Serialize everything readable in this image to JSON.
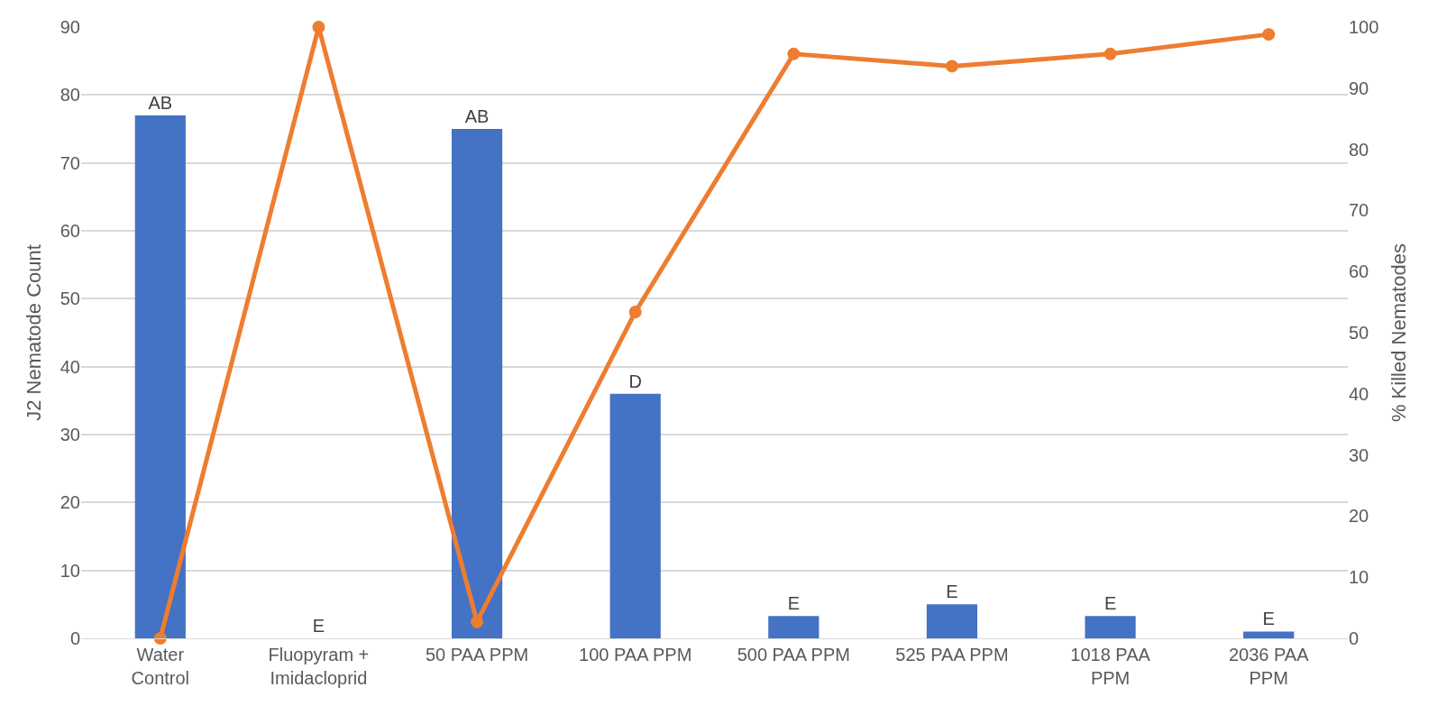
{
  "chart_data": {
    "type": "bar",
    "categories": [
      "Water\nControl",
      "Fluopyram +\nImidacloprid",
      "50 PAA PPM",
      "100 PAA PPM",
      "500 PAA PPM",
      "525 PAA PPM",
      "1018 PAA\nPPM",
      "2036 PAA\nPPM"
    ],
    "series": [
      {
        "color": "#4472c4",
        "values": [
          77,
          0,
          75,
          36,
          3.3,
          5,
          3.3,
          1
        ],
        "value_labels": [
          "AB",
          "E",
          "AB",
          "D",
          "E",
          "E",
          "E",
          "E"
        ]
      },
      {
        "type": "line",
        "axis": "y2",
        "color": "#ed7d31",
        "values": [
          0,
          100,
          2.7,
          53.4,
          95.6,
          93.6,
          95.6,
          98.8
        ]
      }
    ],
    "ylabel": "J2 Nematode Count",
    "y2label": "% Killed Nematodes",
    "ylim": [
      0,
      90
    ],
    "yticks": [
      0,
      10,
      20,
      30,
      40,
      50,
      60,
      70,
      80,
      90
    ],
    "y2lim": [
      0,
      100
    ],
    "y2ticks": [
      0,
      10,
      20,
      30,
      40,
      50,
      60,
      70,
      80,
      90,
      100
    ],
    "grid": "y",
    "marker": "circle",
    "line_style": "solid"
  }
}
